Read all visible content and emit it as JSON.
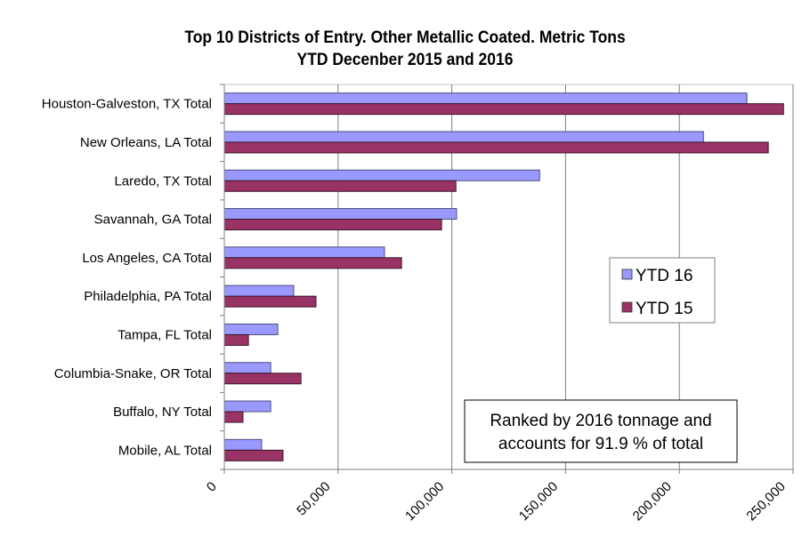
{
  "chart_data": {
    "type": "bar",
    "orientation": "horizontal",
    "title": [
      "Top 10 Districts of Entry. Other Metallic Coated. Metric Tons",
      "YTD Decenber 2015 and 2016"
    ],
    "xlabel": "",
    "ylabel": "",
    "xlim": [
      0,
      250000
    ],
    "x_ticks": [
      0,
      50000,
      100000,
      150000,
      200000,
      250000
    ],
    "x_tick_labels": [
      "0",
      "50,000",
      "100,000",
      "150,000",
      "200,000",
      "250,000"
    ],
    "grid": "vertical",
    "categories": [
      "Houston-Galveston, TX Total",
      "New Orleans, LA Total",
      "Laredo, TX Total",
      "Savannah, GA Total",
      "Los Angeles, CA Total",
      "Philadelphia, PA Total",
      "Tampa, FL Total",
      "Columbia-Snake, OR Total",
      "Buffalo, NY Total",
      "Mobile, AL Total"
    ],
    "series": [
      {
        "name": "YTD 16",
        "color": "#9999FF",
        "values": [
          229700,
          210600,
          138600,
          102100,
          70400,
          30500,
          23500,
          20400,
          20400,
          16400
        ]
      },
      {
        "name": "YTD 15",
        "color": "#993366",
        "values": [
          245800,
          239100,
          101800,
          95500,
          77900,
          40300,
          10600,
          33700,
          8200,
          25800
        ]
      }
    ],
    "legend": {
      "position": "right-middle",
      "entries": [
        "YTD 16",
        "YTD 15"
      ]
    },
    "annotation": [
      "Ranked by 2016 tonnage and",
      "accounts for 91.9 % of total"
    ]
  }
}
